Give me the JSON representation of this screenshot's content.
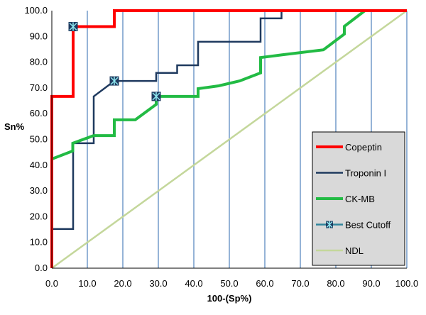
{
  "chart_data": {
    "type": "line",
    "xlabel": "100-(Sp%)",
    "ylabel": "Sn%",
    "xlim": [
      0,
      100
    ],
    "ylim": [
      0,
      100
    ],
    "x_ticks": [
      "0.0",
      "10.0",
      "20.0",
      "30.0",
      "40.0",
      "50.0",
      "60.0",
      "70.0",
      "80.0",
      "90.0",
      "100.0"
    ],
    "y_ticks": [
      "0.0",
      "10.0",
      "20.0",
      "30.0",
      "40.0",
      "50.0",
      "60.0",
      "70.0",
      "80.0",
      "90.0",
      "100.0"
    ],
    "grid": "vertical",
    "legend_position": "bottom-right",
    "series": [
      {
        "name": "Copeptin",
        "color": "#ff0000",
        "x": [
          0,
          0,
          6,
          6,
          17.6,
          17.6,
          100
        ],
        "y": [
          0,
          66.7,
          66.7,
          93.8,
          93.8,
          100,
          100
        ]
      },
      {
        "name": "Troponin I",
        "color": "#1f3a5f",
        "x": [
          0,
          0,
          6,
          6,
          11.8,
          11.8,
          17.6,
          17.6,
          29.4,
          29.4,
          35.3,
          35.3,
          41.2,
          41.2,
          58.8,
          58.8,
          64.7,
          64.7,
          94.1
        ],
        "y": [
          0,
          15.2,
          15.2,
          48.5,
          48.5,
          66.7,
          72.7,
          72.7,
          72.7,
          75.8,
          75.8,
          78.8,
          78.8,
          87.9,
          87.9,
          97,
          97,
          100,
          100
        ]
      },
      {
        "name": "CK-MB",
        "color": "#22bb44",
        "x": [
          0,
          0,
          5.9,
          5.9,
          11.8,
          17.6,
          17.6,
          23.5,
          29.4,
          29.4,
          41.2,
          41.2,
          47,
          52.9,
          58.8,
          58.8,
          64.7,
          76.5,
          82.4,
          82.4,
          88.2,
          94.1
        ],
        "y": [
          0,
          42.4,
          45.5,
          48.5,
          51.5,
          51.5,
          57.6,
          57.6,
          63.6,
          66.7,
          66.7,
          69.7,
          70.8,
          72.7,
          75.8,
          81.8,
          82.8,
          84.8,
          90.9,
          93.9,
          100,
          100
        ]
      },
      {
        "name": "Best Cutoff",
        "color": "#31859c",
        "x": [
          6,
          17.6,
          29.4
        ],
        "y": [
          93.8,
          72.7,
          66.7
        ]
      },
      {
        "name": "NDL",
        "color": "#c4d79b",
        "x": [
          0,
          100
        ],
        "y": [
          0,
          100
        ]
      }
    ]
  }
}
